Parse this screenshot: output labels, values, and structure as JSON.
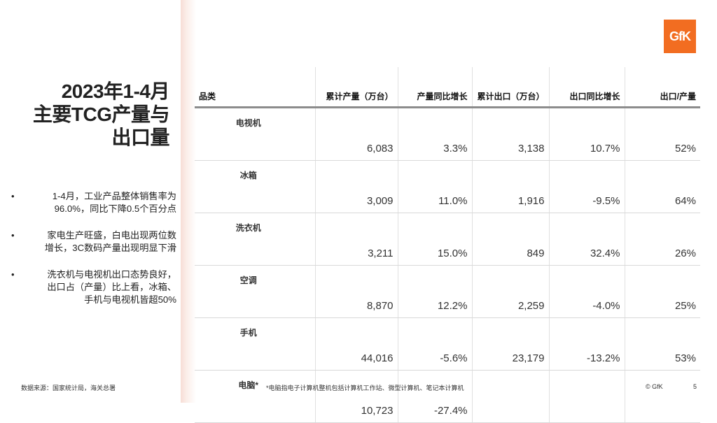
{
  "title": [
    "2023年1-4月",
    "主要TCG产量与",
    "出口量"
  ],
  "bullets": [
    [
      "1-4月，工业产品整体销售率为",
      "96.0%，同比下降0.5个百分点"
    ],
    [
      "家电生产旺盛，白电出现两位数",
      "增长，3C数码产量出现明显下滑"
    ],
    [
      "洗衣机与电视机出口态势良好，",
      "出口占（产量）比上看，冰箱、",
      "手机与电视机皆超50%"
    ]
  ],
  "logo": "GfK",
  "table": {
    "headers": [
      "品类",
      "累计产量（万台）",
      "产量同比增长",
      "累计出口（万台）",
      "出口同比增长",
      "出口/产量"
    ],
    "rows": [
      {
        "cat": "电视机",
        "output": "6,083",
        "output_growth": "3.3%",
        "export": "3,138",
        "export_growth": "10.7%",
        "ratio": "52%"
      },
      {
        "cat": "冰箱",
        "output": "3,009",
        "output_growth": "11.0%",
        "export": "1,916",
        "export_growth": "-9.5%",
        "ratio": "64%"
      },
      {
        "cat": "洗衣机",
        "output": "3,211",
        "output_growth": "15.0%",
        "export": "849",
        "export_growth": "32.4%",
        "ratio": "26%"
      },
      {
        "cat": "空调",
        "output": "8,870",
        "output_growth": "12.2%",
        "export": "2,259",
        "export_growth": "-4.0%",
        "ratio": "25%"
      },
      {
        "cat": "手机",
        "output": "44,016",
        "output_growth": "-5.6%",
        "export": "23,179",
        "export_growth": "-13.2%",
        "ratio": "53%"
      },
      {
        "cat": "电脑*",
        "output": "10,723",
        "output_growth": "-27.4%",
        "export": "",
        "export_growth": "",
        "ratio": ""
      }
    ]
  },
  "colors": {
    "positive": "#c00000",
    "negative": "#2e9e3e",
    "brand": "#f26d21"
  },
  "footer": {
    "source": "数据来源：国家统计局，海关总署",
    "note": "*电脑指电子计算机整机包括计算机工作站、微型计算机、笔记本计算机",
    "copyright": "© GfK",
    "page": "5"
  }
}
